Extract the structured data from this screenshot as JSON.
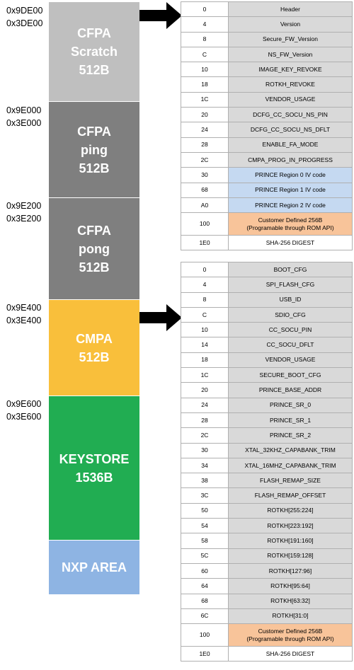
{
  "colors": {
    "cfpa_scratch": "#bfbfbf",
    "cfpa_ping": "#7f7f7f",
    "cfpa_pong": "#7f7f7f",
    "cmpa": "#f9bf3b",
    "keystore": "#21ad52",
    "nxp_area": "#8eb4e3",
    "field_grey": "#d9d9d9",
    "field_blue": "#c5d9f1",
    "field_orange": "#f8c49a"
  },
  "addresses": [
    {
      "a": "0x9DE00",
      "b": "0x3DE00"
    },
    {
      "a": "0x9E000",
      "b": "0x3E000"
    },
    {
      "a": "0x9E200",
      "b": "0x3E200"
    },
    {
      "a": "0x9E400",
      "b": "0x3E400"
    },
    {
      "a": "0x9E600",
      "b": "0x3E600"
    }
  ],
  "blocks": {
    "cfpa_scratch": "CFPA\nScratch\n512B",
    "cfpa_ping": "CFPA\nping\n512B",
    "cfpa_pong": "CFPA\npong\n512B",
    "cmpa": "CMPA\n512B",
    "keystore": "KEYSTORE\n1536B",
    "nxp_area": "NXP AREA"
  },
  "cfpa_table": [
    {
      "offset": "0",
      "name": "Header",
      "color": "grey"
    },
    {
      "offset": "4",
      "name": "Version",
      "color": "grey"
    },
    {
      "offset": "8",
      "name": "Secure_FW_Version",
      "color": "grey"
    },
    {
      "offset": "C",
      "name": "NS_FW_Version",
      "color": "grey"
    },
    {
      "offset": "10",
      "name": "IMAGE_KEY_REVOKE",
      "color": "grey"
    },
    {
      "offset": "18",
      "name": "ROTKH_REVOKE",
      "color": "grey"
    },
    {
      "offset": "1C",
      "name": "VENDOR_USAGE",
      "color": "grey"
    },
    {
      "offset": "20",
      "name": "DCFG_CC_SOCU_NS_PIN",
      "color": "grey"
    },
    {
      "offset": "24",
      "name": "DCFG_CC_SOCU_NS_DFLT",
      "color": "grey"
    },
    {
      "offset": "28",
      "name": "ENABLE_FA_MODE",
      "color": "grey"
    },
    {
      "offset": "2C",
      "name": "CMPA_PROG_IN_PROGRESS",
      "color": "grey"
    },
    {
      "offset": "30",
      "name": "PRINCE Region 0 IV code",
      "color": "blue"
    },
    {
      "offset": "68",
      "name": "PRINCE Region 1 IV code",
      "color": "blue"
    },
    {
      "offset": "A0",
      "name": "PRINCE Region 2 IV code",
      "color": "blue"
    },
    {
      "offset": "100",
      "name": "Customer Defined 256B\n(Programable through ROM API)",
      "color": "orange",
      "tall": true
    },
    {
      "offset": "1E0",
      "name": "SHA-256 DIGEST",
      "color": "white"
    }
  ],
  "cmpa_table": [
    {
      "offset": "0",
      "name": "BOOT_CFG",
      "color": "grey"
    },
    {
      "offset": "4",
      "name": "SPI_FLASH_CFG",
      "color": "grey"
    },
    {
      "offset": "8",
      "name": "USB_ID",
      "color": "grey"
    },
    {
      "offset": "C",
      "name": "SDIO_CFG",
      "color": "grey"
    },
    {
      "offset": "10",
      "name": "CC_SOCU_PIN",
      "color": "grey"
    },
    {
      "offset": "14",
      "name": "CC_SOCU_DFLT",
      "color": "grey"
    },
    {
      "offset": "18",
      "name": "VENDOR_USAGE",
      "color": "grey"
    },
    {
      "offset": "1C",
      "name": "SECURE_BOOT_CFG",
      "color": "grey"
    },
    {
      "offset": "20",
      "name": "PRINCE_BASE_ADDR",
      "color": "grey"
    },
    {
      "offset": "24",
      "name": "PRINCE_SR_0",
      "color": "grey",
      "sep": true
    },
    {
      "offset": "28",
      "name": "PRINCE_SR_1",
      "color": "grey"
    },
    {
      "offset": "2C",
      "name": "PRINCE_SR_2",
      "color": "grey"
    },
    {
      "offset": "30",
      "name": "XTAL_32KHZ_CAPABANK_TRIM",
      "color": "grey"
    },
    {
      "offset": "34",
      "name": "XTAL_16MHZ_CAPABANK_TRIM",
      "color": "grey"
    },
    {
      "offset": "38",
      "name": "FLASH_REMAP_SIZE",
      "color": "grey"
    },
    {
      "offset": "3C",
      "name": "FLASH_REMAP_OFFSET",
      "color": "grey"
    },
    {
      "offset": "50",
      "name": "ROTKH[255:224]",
      "color": "grey"
    },
    {
      "offset": "54",
      "name": "ROTKH[223:192]",
      "color": "grey"
    },
    {
      "offset": "58",
      "name": "ROTKH[191:160]",
      "color": "grey"
    },
    {
      "offset": "5C",
      "name": "ROTKH[159:128]",
      "color": "grey"
    },
    {
      "offset": "60",
      "name": "ROTKH[127:96]",
      "color": "grey"
    },
    {
      "offset": "64",
      "name": "ROTKH[95:64]",
      "color": "grey"
    },
    {
      "offset": "68",
      "name": "ROTKH[63:32]",
      "color": "grey"
    },
    {
      "offset": "6C",
      "name": "ROTKH[31:0]",
      "color": "grey",
      "sep": true
    },
    {
      "offset": "100",
      "name": "Customer Defined 256B\n(Programable through ROM API)",
      "color": "orange",
      "tall": true
    },
    {
      "offset": "1E0",
      "name": "SHA-256 DIGEST",
      "color": "white"
    }
  ],
  "arrows": [
    "right-arrow-icon",
    "right-arrow-icon"
  ]
}
